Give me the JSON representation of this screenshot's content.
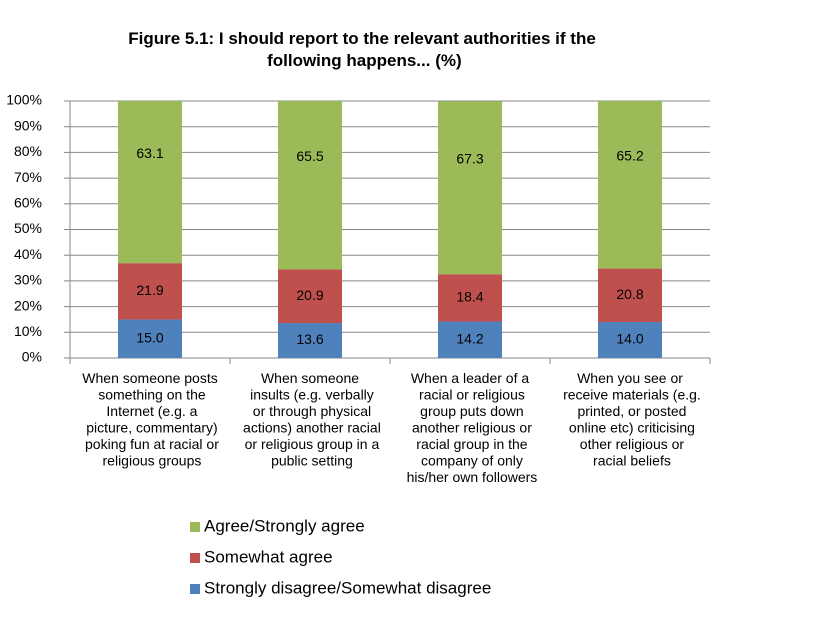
{
  "chart_data": {
    "type": "stacked-bar",
    "title": "Figure 5.1: I should report to the relevant authorities if the\nfollowing happens... (%)",
    "categories": [
      "When someone posts\nsomething on the\nInternet (e.g. a\npicture, commentary)\npoking fun at racial or\nreligious groups",
      "When someone\ninsults (e.g. verbally\nor through physical\nactions) another racial\nor religious group in a\npublic setting",
      "When a leader of a\nracial or religious\ngroup puts down\nanother religious or\nracial group in the\ncompany of only\nhis/her own followers",
      "When you see or\nreceive materials (e.g.\nprinted, or posted\nonline etc) criticising\nother religious or\nracial beliefs"
    ],
    "series": [
      {
        "name": "Strongly disagree/Somewhat disagree",
        "color": "#4f81bd",
        "values": [
          15.0,
          13.6,
          14.2,
          14.0
        ],
        "value_labels": [
          "15.0",
          "13.6",
          "14.2",
          "14.0"
        ]
      },
      {
        "name": "Somewhat agree",
        "color": "#c0504d",
        "values": [
          21.9,
          20.9,
          18.4,
          20.8
        ],
        "value_labels": [
          "21.9",
          "20.9",
          "18.4",
          "20.8"
        ]
      },
      {
        "name": "Agree/Strongly agree",
        "color": "#9bbb59",
        "values": [
          63.1,
          65.5,
          67.3,
          65.2
        ],
        "value_labels": [
          "63.1",
          "65.5",
          "67.3",
          "65.2"
        ]
      }
    ],
    "ylim": [
      0,
      100
    ],
    "yticks": [
      {
        "value": 0,
        "label": "0%"
      },
      {
        "value": 10,
        "label": "10%"
      },
      {
        "value": 20,
        "label": "20%"
      },
      {
        "value": 30,
        "label": "30%"
      },
      {
        "value": 40,
        "label": "40%"
      },
      {
        "value": 50,
        "label": "50%"
      },
      {
        "value": 60,
        "label": "60%"
      },
      {
        "value": 70,
        "label": "70%"
      },
      {
        "value": 80,
        "label": "80%"
      },
      {
        "value": 90,
        "label": "90%"
      },
      {
        "value": 100,
        "label": "100%"
      }
    ],
    "grid": true,
    "legend": "bottom"
  }
}
